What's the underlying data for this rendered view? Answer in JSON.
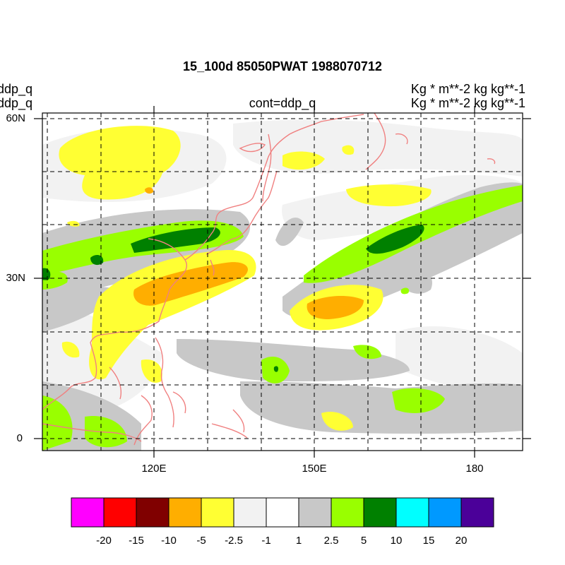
{
  "title": "15_100d 85050PWAT  1988070712",
  "left_labels": [
    "ddp_q",
    "ddp_q"
  ],
  "right_labels": [
    "Kg  * m**-2 kg kg**-1",
    "Kg  * m**-2 kg kg**-1"
  ],
  "center_label": "cont=ddp_q",
  "axes": {
    "lat_ticks": [
      "60N",
      "30N",
      "0"
    ],
    "lon_ticks": [
      "120E",
      "150E",
      "180"
    ]
  },
  "colorbar": {
    "colors": [
      "#ff00ff",
      "#ff0000",
      "#800000",
      "#ffae00",
      "#ffff33",
      "#f2f2f2",
      "#ffffff",
      "#c8c8c8",
      "#99ff00",
      "#008000",
      "#00ffff",
      "#0099ff",
      "#4b0099"
    ],
    "labels": [
      "-20",
      "-15",
      "-10",
      "-5",
      "-2.5",
      "-1",
      "1",
      "2.5",
      "5",
      "10",
      "15",
      "20"
    ]
  },
  "colors": {
    "coastline": "#f08080",
    "grid": "#000000"
  }
}
